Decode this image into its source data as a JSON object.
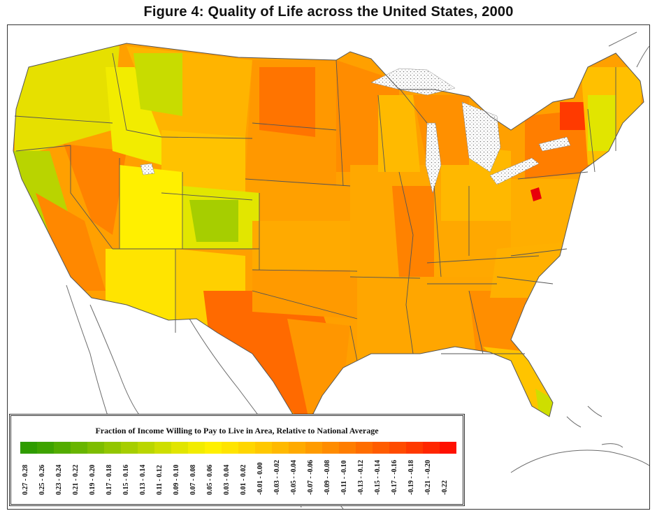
{
  "title": "Figure 4: Quality of Life across the United States, 2000",
  "legend": {
    "title": "Fraction of Income Willing to Pay to Live in Area, Relative to National Average",
    "bins": [
      {
        "label": "0.27 - 0.28",
        "color": "#2f9c00"
      },
      {
        "label": "0.25 - 0.26",
        "color": "#3ea300"
      },
      {
        "label": "0.23 - 0.24",
        "color": "#53ac00"
      },
      {
        "label": "0.21 - 0.22",
        "color": "#68b500"
      },
      {
        "label": "0.19 - 0.20",
        "color": "#7dbd00"
      },
      {
        "label": "0.17 - 0.18",
        "color": "#92c600"
      },
      {
        "label": "0.15 - 0.16",
        "color": "#a6ce00"
      },
      {
        "label": "0.13 - 0.14",
        "color": "#bad600"
      },
      {
        "label": "0.11 - 0.12",
        "color": "#cede00"
      },
      {
        "label": "0.09 - 0.10",
        "color": "#e1e500"
      },
      {
        "label": "0.07 - 0.08",
        "color": "#f2ec00"
      },
      {
        "label": "0.05 - 0.06",
        "color": "#fff000"
      },
      {
        "label": "0.03 - 0.04",
        "color": "#ffe400"
      },
      {
        "label": "0.01 - 0.02",
        "color": "#ffd600"
      },
      {
        "label": "-0.01 - 0.00",
        "color": "#ffc800"
      },
      {
        "label": "-0.03 - -0.02",
        "color": "#ffb900"
      },
      {
        "label": "-0.05 - -0.04",
        "color": "#ffaa00"
      },
      {
        "label": "-0.07 - -0.06",
        "color": "#ff9b00"
      },
      {
        "label": "-0.09 - -0.08",
        "color": "#ff8c00"
      },
      {
        "label": "-0.11 - -0.10",
        "color": "#ff7d00"
      },
      {
        "label": "-0.13 - -0.12",
        "color": "#ff6d00"
      },
      {
        "label": "-0.15 - -0.14",
        "color": "#ff5c00"
      },
      {
        "label": "-0.17 - -0.16",
        "color": "#ff4b00"
      },
      {
        "label": "-0.19 - -0.18",
        "color": "#ff3900"
      },
      {
        "label": "-0.21 - -0.20",
        "color": "#ff2600"
      },
      {
        "label": "-0.22",
        "color": "#ff1000"
      }
    ]
  },
  "colors": {
    "state_border": "#555555",
    "coastline": "#666666",
    "water": "#ffffff",
    "lake_stipple": "#777777",
    "highlight_dc": "#e8000a"
  }
}
